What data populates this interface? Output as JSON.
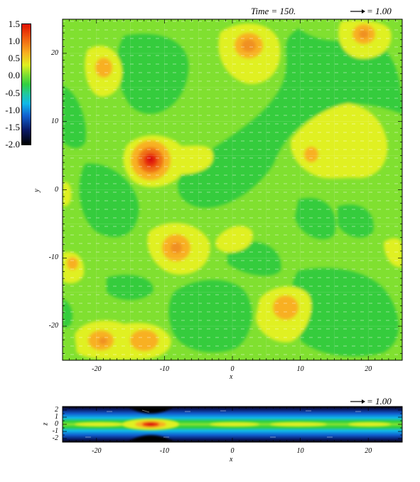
{
  "title": "Time = 150.",
  "vector_key": "= 1.00",
  "vector_key_lower": "= 1.00",
  "colorbar": {
    "labels": [
      "1.5",
      "1.0",
      "0.5",
      "0.0",
      "-0.5",
      "-1.0",
      "-1.5",
      "-2.0"
    ],
    "colors": [
      "#000000",
      "#0a1a66",
      "#1060d0",
      "#10b8e8",
      "#20c8a0",
      "#30d040",
      "#80e030",
      "#e0f020",
      "#f8b020",
      "#f06010",
      "#e01000"
    ]
  },
  "chart_data": [
    {
      "type": "heatmap",
      "title": "Time = 150.",
      "xlabel": "x",
      "ylabel": "y",
      "xlim": [
        -25,
        25
      ],
      "ylim": [
        -25,
        25
      ],
      "x_ticks": [
        "-20",
        "-10",
        "0",
        "10",
        "20"
      ],
      "y_ticks": [
        "-20",
        "-10",
        "0",
        "10",
        "20"
      ],
      "zlim": [
        -2.0,
        1.5
      ],
      "features": [
        {
          "x": -12,
          "y": 4.5,
          "value": 1.5
        },
        {
          "x": -9,
          "y": -8.5,
          "value": 0.8
        },
        {
          "x": 2.5,
          "y": 21,
          "value": 0.9
        },
        {
          "x": 19,
          "y": 22.5,
          "value": 0.9
        },
        {
          "x": -19,
          "y": 18.5,
          "value": 0.7
        },
        {
          "x": 11,
          "y": 5.5,
          "value": 0.6
        },
        {
          "x": 8,
          "y": -17.5,
          "value": 0.7
        },
        {
          "x": -19,
          "y": -22,
          "value": 0.8
        },
        {
          "x": -13,
          "y": -22,
          "value": 0.7
        },
        {
          "x": -23,
          "y": -10.5,
          "value": 0.5
        },
        {
          "x": -2,
          "y": -6.5,
          "value": 0.3
        },
        {
          "x": 18,
          "y": 7,
          "value": 0.3
        }
      ]
    },
    {
      "type": "heatmap",
      "xlabel": "x",
      "ylabel": "z",
      "xlim": [
        -25,
        25
      ],
      "ylim": [
        -2.5,
        2.5
      ],
      "x_ticks": [
        "-20",
        "-10",
        "0",
        "10",
        "20"
      ],
      "y_ticks": [
        "2",
        "1",
        "0",
        "-1",
        "-2"
      ],
      "zlim": [
        -2.0,
        1.5
      ],
      "features": [
        {
          "x": -12,
          "z": 0,
          "value": 1.5
        }
      ]
    }
  ]
}
